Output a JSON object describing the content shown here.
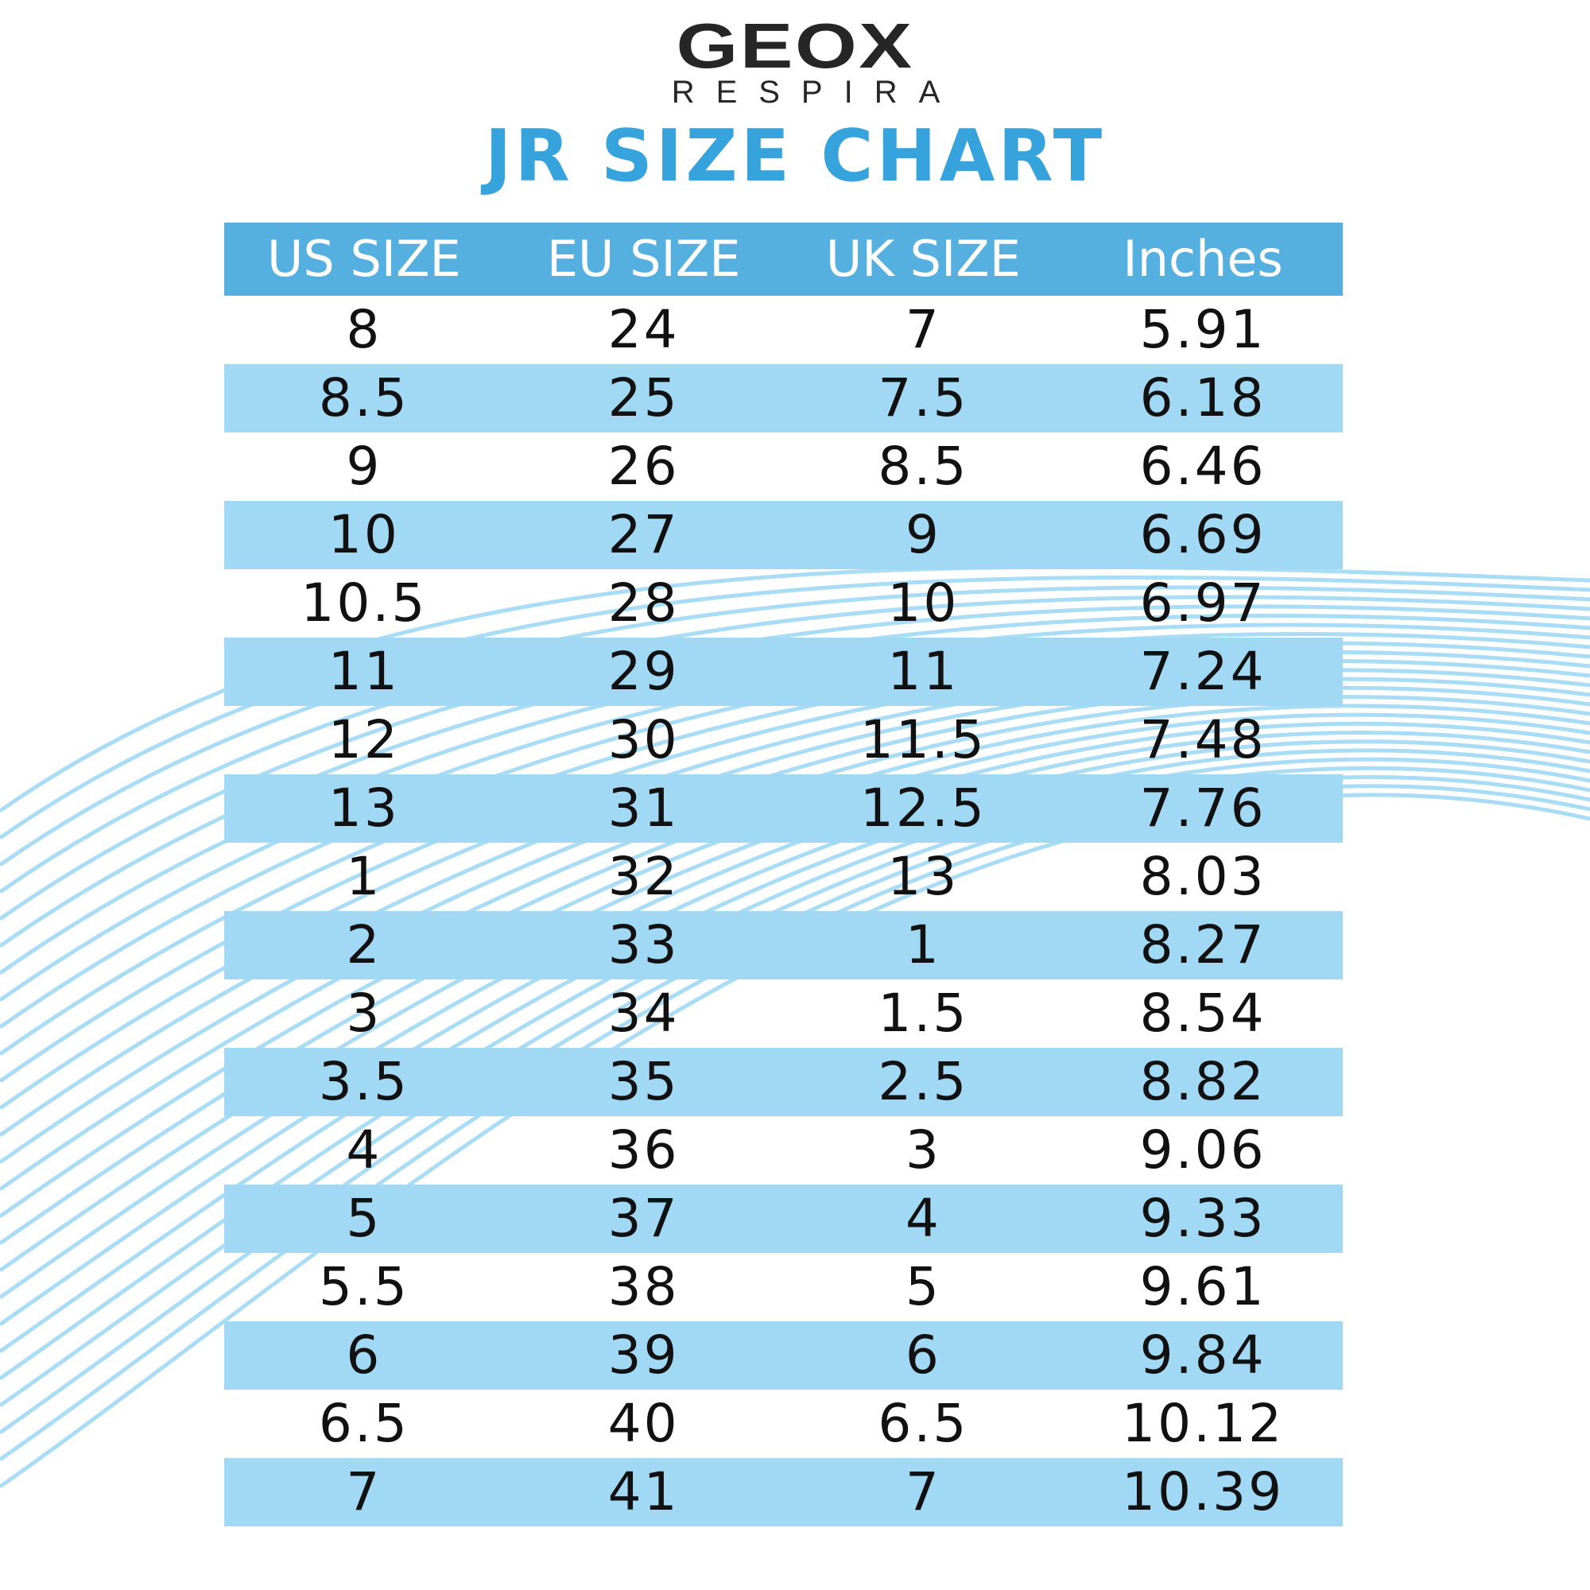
{
  "logo": {
    "brand": "GEOX",
    "tagline": "RESPIRA"
  },
  "title": "JR SIZE CHART",
  "colors": {
    "title": "#36a3dc",
    "header_bg": "#55b0df",
    "stripe": "#a1d8f3",
    "waves": "#a9dcf5"
  },
  "table": {
    "headers": [
      "US SIZE",
      "EU SIZE",
      "UK SIZE",
      "Inches"
    ],
    "rows": [
      [
        "8",
        "24",
        "7",
        "5.91"
      ],
      [
        "8.5",
        "25",
        "7.5",
        "6.18"
      ],
      [
        "9",
        "26",
        "8.5",
        "6.46"
      ],
      [
        "10",
        "27",
        "9",
        "6.69"
      ],
      [
        "10.5",
        "28",
        "10",
        "6.97"
      ],
      [
        "11",
        "29",
        "11",
        "7.24"
      ],
      [
        "12",
        "30",
        "11.5",
        "7.48"
      ],
      [
        "13",
        "31",
        "12.5",
        "7.76"
      ],
      [
        "1",
        "32",
        "13",
        "8.03"
      ],
      [
        "2",
        "33",
        "1",
        "8.27"
      ],
      [
        "3",
        "34",
        "1.5",
        "8.54"
      ],
      [
        "3.5",
        "35",
        "2.5",
        "8.82"
      ],
      [
        "4",
        "36",
        "3",
        "9.06"
      ],
      [
        "5",
        "37",
        "4",
        "9.33"
      ],
      [
        "5.5",
        "38",
        "5",
        "9.61"
      ],
      [
        "6",
        "39",
        "6",
        "9.84"
      ],
      [
        "6.5",
        "40",
        "6.5",
        "10.12"
      ],
      [
        "7",
        "41",
        "7",
        "10.39"
      ]
    ]
  }
}
